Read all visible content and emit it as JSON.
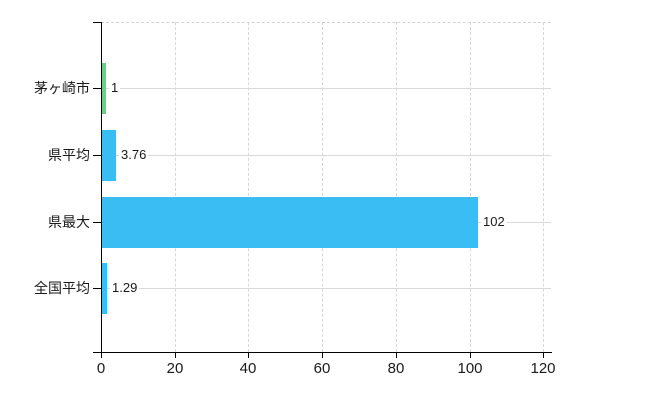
{
  "chart_data": {
    "type": "bar",
    "orientation": "horizontal",
    "categories": [
      "茅ヶ崎市",
      "県平均",
      "県最大",
      "全国平均"
    ],
    "values": [
      1,
      3.76,
      102,
      1.29
    ],
    "value_labels": [
      "1",
      "3.76",
      "102",
      "1.29"
    ],
    "bar_colors": [
      "#6CCE87",
      "#39BDF2",
      "#39BDF2",
      "#39BDF2"
    ],
    "xlim": [
      0,
      120
    ],
    "x_ticks": [
      0,
      20,
      40,
      60,
      80,
      100,
      120
    ],
    "x_tick_labels": [
      "0",
      "20",
      "40",
      "60",
      "80",
      "100",
      "120"
    ],
    "grid": true,
    "legend": false,
    "colors": {
      "bar_blue": "#39BDF2",
      "bar_green": "#6CCE87",
      "gridline": "#d9d9d9",
      "axis": "#000000",
      "text": "#1a1a1a",
      "background": "#ffffff"
    }
  }
}
